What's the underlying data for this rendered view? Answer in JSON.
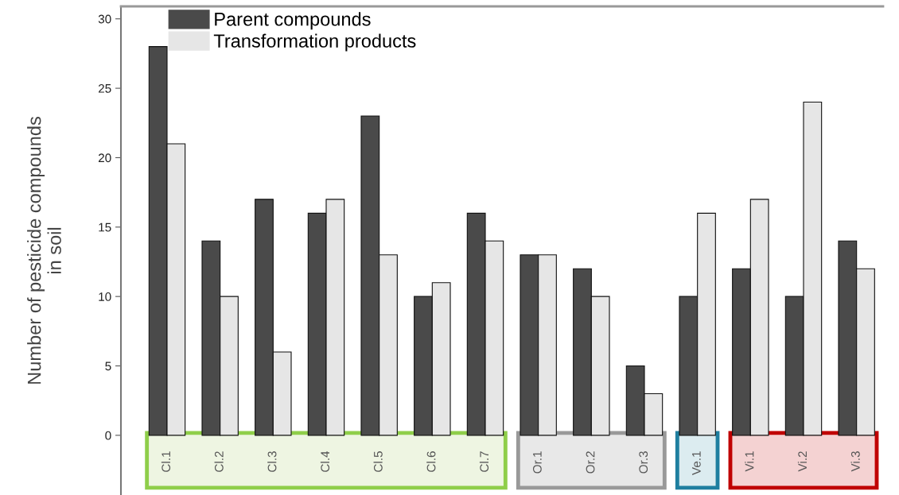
{
  "chart_data": {
    "type": "bar",
    "categories": [
      "Cl.1",
      "Cl.2",
      "Cl.3",
      "Cl.4",
      "Cl.5",
      "Cl.6",
      "Cl.7",
      "Or.1",
      "Or.2",
      "Or.3",
      "Ve.1",
      "Vi.1",
      "Vi.2",
      "Vi.3"
    ],
    "series": [
      {
        "name": "Parent compounds",
        "color": "#4a4a4a",
        "values": [
          28,
          14,
          17,
          16,
          23,
          10,
          16,
          13,
          12,
          5,
          10,
          12,
          10,
          14
        ]
      },
      {
        "name": "Transformation products",
        "color": "#e6e6e6",
        "values": [
          21,
          10,
          6,
          17,
          13,
          11,
          14,
          13,
          10,
          3,
          16,
          17,
          24,
          12
        ]
      }
    ],
    "ylabel": "Number of pesticide compounds\nin soil",
    "ylim": [
      -4.3,
      30.9
    ],
    "yticks": [
      0,
      5,
      10,
      15,
      20,
      25,
      30
    ],
    "grid": false,
    "legend": "top left"
  }
}
